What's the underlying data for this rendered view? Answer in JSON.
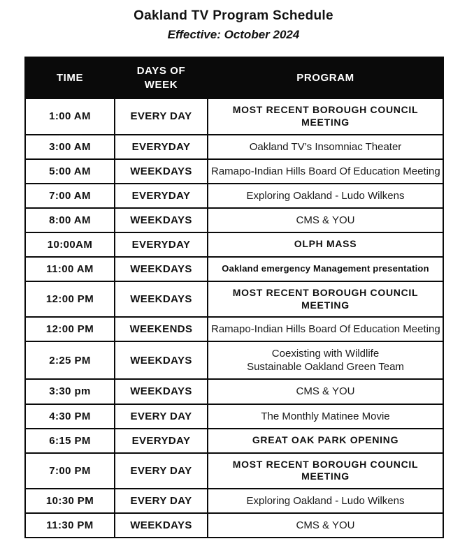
{
  "page": {
    "title": "Oakland TV Program Schedule",
    "subtitle": "Effective: October 2024"
  },
  "table": {
    "headers": [
      "TIME",
      "DAYS OF WEEK",
      "PROGRAM"
    ],
    "rows": [
      {
        "time": "1:00 AM",
        "days": "EVERY DAY",
        "program": [
          "MOST RECENT BOROUGH COUNCIL",
          "MEETING"
        ],
        "emphasis": "bold"
      },
      {
        "time": "3:00 AM",
        "days": "EVERYDAY",
        "program": [
          "Oakland TV’s Insomniac Theater"
        ],
        "emphasis": "regular"
      },
      {
        "time": "5:00 AM",
        "days": "WEEKDAYS",
        "program": [
          "Ramapo-Indian Hills Board Of Education Meeting"
        ],
        "emphasis": "regular"
      },
      {
        "time": "7:00 AM",
        "days": "EVERYDAY",
        "program": [
          "Exploring Oakland - Ludo Wilkens"
        ],
        "emphasis": "regular"
      },
      {
        "time": "8:00 AM",
        "days": "WEEKDAYS",
        "program": [
          "CMS & YOU"
        ],
        "emphasis": "regular"
      },
      {
        "time": "10:00AM",
        "days": "EVERYDAY",
        "program": [
          "OLPH MASS"
        ],
        "emphasis": "bold"
      },
      {
        "time": "11:00 AM",
        "days": "WEEKDAYS",
        "program": [
          "Oakland emergency Management presentation"
        ],
        "emphasis": "bold-small"
      },
      {
        "time": "12:00 PM",
        "days": "WEEKDAYS",
        "program": [
          "MOST RECENT BOROUGH COUNCIL",
          "MEETING"
        ],
        "emphasis": "bold"
      },
      {
        "time": "12:00 PM",
        "days": "WEEKENDS",
        "program": [
          "Ramapo-Indian Hills Board Of Education Meeting"
        ],
        "emphasis": "regular"
      },
      {
        "time": "2:25 PM",
        "days": "WEEKDAYS",
        "program": [
          "Coexisting with Wildlife",
          "Sustainable Oakland Green Team"
        ],
        "emphasis": "regular"
      },
      {
        "time": "3:30 pm",
        "days": "WEEKDAYS",
        "program": [
          "CMS & YOU"
        ],
        "emphasis": "regular"
      },
      {
        "time": "4:30 PM",
        "days": "EVERY DAY",
        "program": [
          "The Monthly Matinee Movie"
        ],
        "emphasis": "regular"
      },
      {
        "time": "6:15 PM",
        "days": "EVERYDAY",
        "program": [
          "GREAT OAK PARK OPENING"
        ],
        "emphasis": "bold"
      },
      {
        "time": "7:00 PM",
        "days": "EVERY DAY",
        "program": [
          "MOST RECENT BOROUGH COUNCIL",
          "MEETING"
        ],
        "emphasis": "bold"
      },
      {
        "time": "10:30 PM",
        "days": "EVERY DAY",
        "program": [
          "Exploring Oakland - Ludo Wilkens"
        ],
        "emphasis": "regular"
      },
      {
        "time": "11:30 PM",
        "days": "WEEKDAYS",
        "program": [
          "CMS & YOU"
        ],
        "emphasis": "regular"
      }
    ]
  }
}
